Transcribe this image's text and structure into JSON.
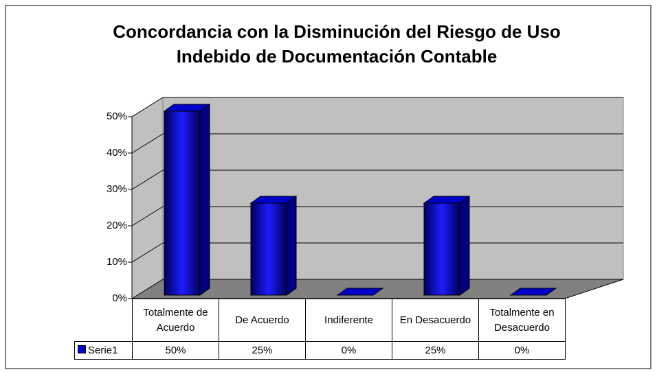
{
  "chart_data": {
    "type": "bar3d",
    "title": "Concordancia con la Disminución del Riesgo de Uso Indebido de Documentación Contable",
    "categories": [
      "Totalmente de Acuerdo",
      "De Acuerdo",
      "Indiferente",
      "En Desacuerdo",
      "Totalmente en Desacuerdo"
    ],
    "series": [
      {
        "name": "Serie1",
        "color": "#0000c8",
        "values": [
          50,
          25,
          0,
          25,
          0
        ],
        "value_labels": [
          "50%",
          "25%",
          "0%",
          "25%",
          "0%"
        ]
      }
    ],
    "ylim": [
      0,
      50
    ],
    "yticks": [
      {
        "value": 0,
        "label": "0%"
      },
      {
        "value": 10,
        "label": "10%"
      },
      {
        "value": 20,
        "label": "20%"
      },
      {
        "value": 30,
        "label": "30%"
      },
      {
        "value": 40,
        "label": "40%"
      },
      {
        "value": 50,
        "label": "50%"
      }
    ],
    "grid": true,
    "data_table": true
  }
}
